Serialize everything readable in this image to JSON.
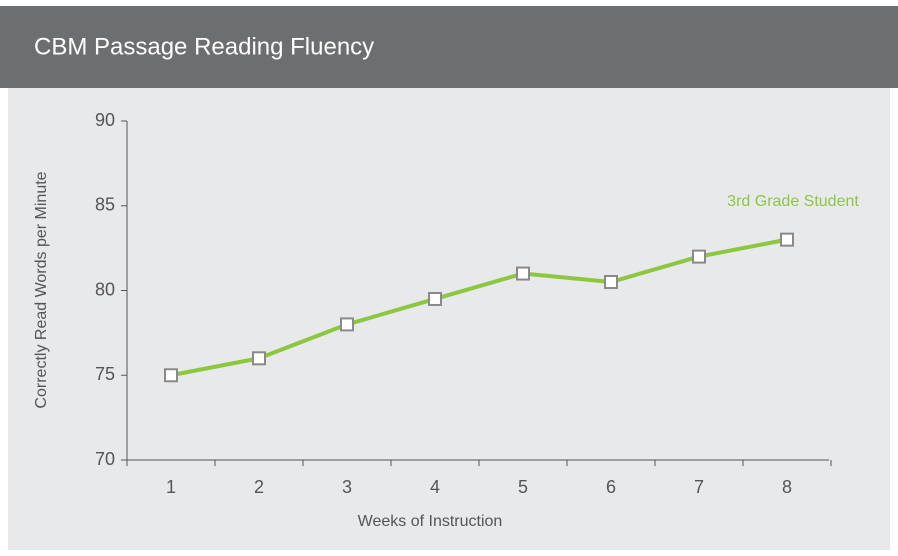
{
  "chart_data": {
    "type": "line",
    "title": "CBM Passage Reading Fluency",
    "x_label": "Weeks of Instruction",
    "y_label": "Correctly Read Words per Minute",
    "categories": [
      "1",
      "2",
      "3",
      "4",
      "5",
      "6",
      "7",
      "8"
    ],
    "series": [
      {
        "name": "3rd Grade Student",
        "color": "#8dc63f",
        "values": [
          75,
          76,
          78,
          79.5,
          81,
          80.5,
          82,
          83
        ]
      }
    ],
    "ylim": [
      70,
      90
    ],
    "yticks": [
      70,
      75,
      80,
      85,
      90
    ],
    "grid": false
  }
}
